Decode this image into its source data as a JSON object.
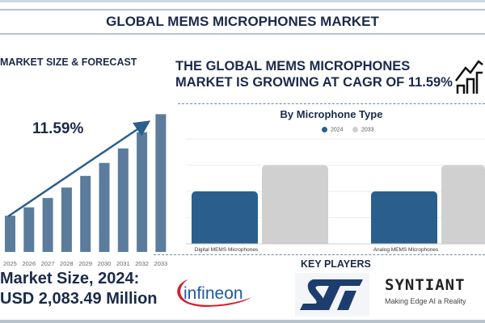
{
  "title": "GLOBAL MEMS MICROPHONES MARKET",
  "left_heading": "MARKET SIZE & FORECAST",
  "headline": "THE GLOBAL MEMS MICROPHONES MARKET IS GROWING AT CAGR OF 11.59%",
  "market_size_line1": "Market Size, 2024:",
  "market_size_line2": "USD 2,083.49 Million",
  "key_players_label": "KEY PLAYERS",
  "logos": {
    "infineon": "infineon",
    "st": "ST",
    "syntiant": "SYNTIANT",
    "syntiant_tagline": "Making Edge AI a Reality"
  },
  "chart_data": [
    {
      "type": "bar",
      "title": "",
      "cagr_label": "11.59%",
      "categories": [
        "2025",
        "2026",
        "2027",
        "2028",
        "2029",
        "2030",
        "2031",
        "2032",
        "2033"
      ],
      "values": [
        2325,
        2594,
        2895,
        3231,
        3605,
        4023,
        4489,
        5010,
        5590
      ],
      "ylim": [
        1160,
        5600
      ],
      "color": "#5b7c9c"
    },
    {
      "type": "bar",
      "title": "By Microphone Type",
      "categories": [
        "Digital MEMS Microphones",
        "Analog MEMS Microphones"
      ],
      "series": [
        {
          "name": "2024",
          "values": [
            2,
            2
          ],
          "color": "#2a5f8d"
        },
        {
          "name": "2033",
          "values": [
            3,
            3
          ],
          "color": "#d0d0d0"
        }
      ],
      "ylim": [
        0,
        4
      ],
      "grid": true,
      "legend": "top-center"
    }
  ]
}
